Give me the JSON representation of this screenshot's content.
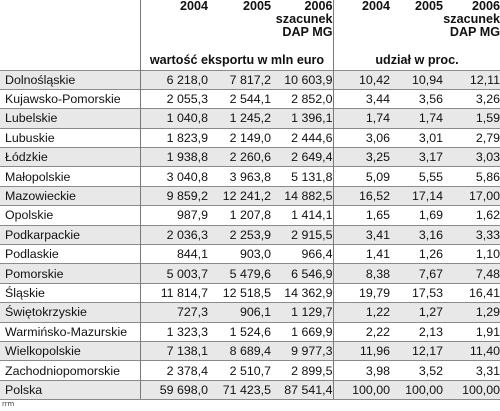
{
  "header": {
    "years": [
      {
        "label": "2004"
      },
      {
        "label": "2005"
      },
      {
        "label": "2006 szacunek DAP MG"
      },
      {
        "label": "2004"
      },
      {
        "label": "2005"
      },
      {
        "label": "2006 szacunek DAP MG"
      }
    ],
    "group_export": "wartość eksportu w mln euro",
    "group_share": "udział w proc."
  },
  "rows": [
    {
      "region": "Dolnośląskie",
      "e2004": "6 218,0",
      "e2005": "7 817,2",
      "e2006": "10 603,9",
      "s2004": "10,42",
      "s2005": "10,94",
      "s2006": "12,11"
    },
    {
      "region": "Kujawsko-Pomorskie",
      "e2004": "2 055,3",
      "e2005": "2 544,1",
      "e2006": "2 852,0",
      "s2004": "3,44",
      "s2005": "3,56",
      "s2006": "3,26"
    },
    {
      "region": "Lubelskie",
      "e2004": "1 040,8",
      "e2005": "1 245,2",
      "e2006": "1 396,1",
      "s2004": "1,74",
      "s2005": "1,74",
      "s2006": "1,59"
    },
    {
      "region": "Lubuskie",
      "e2004": "1 823,9",
      "e2005": "2 149,0",
      "e2006": "2 444,6",
      "s2004": "3,06",
      "s2005": "3,01",
      "s2006": "2,79"
    },
    {
      "region": "Łódzkie",
      "e2004": "1 938,8",
      "e2005": "2 260,6",
      "e2006": "2 649,4",
      "s2004": "3,25",
      "s2005": "3,17",
      "s2006": "3,03"
    },
    {
      "region": "Małopolskie",
      "e2004": "3 040,8",
      "e2005": "3 963,8",
      "e2006": "5 131,8",
      "s2004": "5,09",
      "s2005": "5,55",
      "s2006": "5,86"
    },
    {
      "region": "Mazowieckie",
      "e2004": "9 859,2",
      "e2005": "12 241,2",
      "e2006": "14 882,5",
      "s2004": "16,52",
      "s2005": "17,14",
      "s2006": "17,00"
    },
    {
      "region": "Opolskie",
      "e2004": "987,9",
      "e2005": "1 207,8",
      "e2006": "1 414,1",
      "s2004": "1,65",
      "s2005": "1,69",
      "s2006": "1,62"
    },
    {
      "region": "Podkarpackie",
      "e2004": "2 036,3",
      "e2005": "2 253,9",
      "e2006": "2 915,5",
      "s2004": "3,41",
      "s2005": "3,16",
      "s2006": "3,33"
    },
    {
      "region": "Podlaskie",
      "e2004": "844,1",
      "e2005": "903,0",
      "e2006": "966,4",
      "s2004": "1,41",
      "s2005": "1,26",
      "s2006": "1,10"
    },
    {
      "region": "Pomorskie",
      "e2004": "5 003,7",
      "e2005": "5 479,6",
      "e2006": "6 546,9",
      "s2004": "8,38",
      "s2005": "7,67",
      "s2006": "7,48"
    },
    {
      "region": "Śląskie",
      "e2004": "11 814,7",
      "e2005": "12 518,5",
      "e2006": "14 362,9",
      "s2004": "19,79",
      "s2005": "17,53",
      "s2006": "16,41"
    },
    {
      "region": "Świętokrzyskie",
      "e2004": "727,3",
      "e2005": "906,1",
      "e2006": "1 129,7",
      "s2004": "1,22",
      "s2005": "1,27",
      "s2006": "1,29"
    },
    {
      "region": "Warmińsko-Mazurskie",
      "e2004": "1 323,3",
      "e2005": "1 524,6",
      "e2006": "1 669,9",
      "s2004": "2,22",
      "s2005": "2,13",
      "s2006": "1,91"
    },
    {
      "region": "Wielkopolskie",
      "e2004": "7 138,1",
      "e2005": "8 689,4",
      "e2006": "9 977,3",
      "s2004": "11,96",
      "s2005": "12,17",
      "s2006": "11,40"
    },
    {
      "region": "Zachodniopomorskie",
      "e2004": "2 378,4",
      "e2005": "2 510,7",
      "e2006": "2 899,5",
      "s2004": "3,98",
      "s2005": "3,52",
      "s2006": "3,31"
    },
    {
      "region": "Polska",
      "e2004": "59 698,0",
      "e2005": "71 423,5",
      "e2006": "87 541,4",
      "s2004": "100,00",
      "s2005": "100,00",
      "s2006": "100,00"
    }
  ],
  "credit": "rrm"
}
